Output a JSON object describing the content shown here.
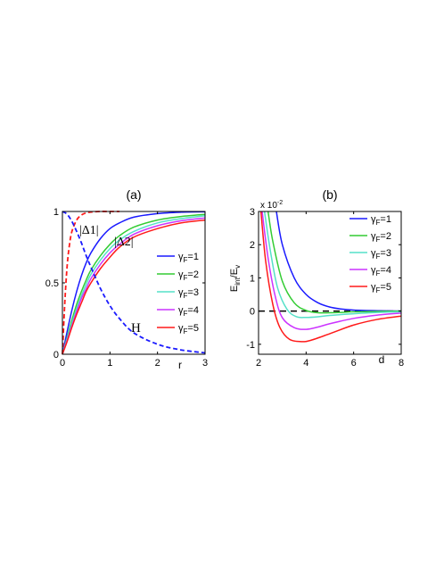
{
  "chart_data": [
    {
      "type": "line",
      "panel_label": "(a)",
      "xlabel": "r",
      "ylabel": "",
      "xlim": [
        0,
        3
      ],
      "ylim": [
        0,
        1
      ],
      "x_ticks": [
        "0",
        "1",
        "2",
        "3"
      ],
      "y_ticks": [
        "0",
        "0.5",
        "1"
      ],
      "legend_position": "right",
      "annotations": [
        "|Δ1|",
        "|Δ2|",
        "H"
      ],
      "series": [
        {
          "name": "γF=1",
          "color": "#1a1aff",
          "style": "solid",
          "x": [
            0,
            0.1,
            0.2,
            0.3,
            0.4,
            0.5,
            0.6,
            0.8,
            1.0,
            1.2,
            1.5,
            2.0,
            2.5,
            3.0
          ],
          "y": [
            0,
            0.16,
            0.31,
            0.44,
            0.55,
            0.64,
            0.71,
            0.81,
            0.88,
            0.92,
            0.96,
            0.985,
            0.995,
            0.998
          ]
        },
        {
          "name": "γF=2",
          "color": "#33cc33",
          "style": "solid",
          "x": [
            0,
            0.1,
            0.2,
            0.3,
            0.4,
            0.5,
            0.6,
            0.8,
            1.0,
            1.2,
            1.5,
            2.0,
            2.5,
            3.0
          ],
          "y": [
            0,
            0.12,
            0.24,
            0.35,
            0.44,
            0.52,
            0.59,
            0.69,
            0.77,
            0.83,
            0.89,
            0.94,
            0.965,
            0.98
          ]
        },
        {
          "name": "γF=3",
          "color": "#55e0c8",
          "style": "solid",
          "x": [
            0,
            0.1,
            0.2,
            0.3,
            0.4,
            0.5,
            0.6,
            0.8,
            1.0,
            1.2,
            1.5,
            2.0,
            2.5,
            3.0
          ],
          "y": [
            0,
            0.11,
            0.22,
            0.32,
            0.41,
            0.49,
            0.56,
            0.66,
            0.74,
            0.8,
            0.86,
            0.92,
            0.95,
            0.97
          ]
        },
        {
          "name": "γF=4",
          "color": "#cc33ff",
          "style": "solid",
          "x": [
            0,
            0.1,
            0.2,
            0.3,
            0.4,
            0.5,
            0.6,
            0.8,
            1.0,
            1.2,
            1.5,
            2.0,
            2.5,
            3.0
          ],
          "y": [
            0,
            0.1,
            0.2,
            0.3,
            0.39,
            0.46,
            0.53,
            0.63,
            0.71,
            0.77,
            0.84,
            0.9,
            0.935,
            0.955
          ]
        },
        {
          "name": "γF=5",
          "color": "#ff1a1a",
          "style": "solid",
          "x": [
            0,
            0.1,
            0.2,
            0.3,
            0.4,
            0.5,
            0.6,
            0.8,
            1.0,
            1.2,
            1.5,
            2.0,
            2.5,
            3.0
          ],
          "y": [
            0,
            0.09,
            0.19,
            0.28,
            0.36,
            0.44,
            0.5,
            0.6,
            0.68,
            0.75,
            0.82,
            0.88,
            0.92,
            0.94
          ]
        },
        {
          "name": "",
          "color": "#ff1a1a",
          "style": "dashed",
          "x": [
            0,
            0.05,
            0.1,
            0.15,
            0.2,
            0.3,
            0.4,
            0.5,
            0.6,
            0.8,
            1.0,
            1.2
          ],
          "y": [
            0,
            0.36,
            0.62,
            0.77,
            0.86,
            0.94,
            0.975,
            0.99,
            0.996,
            1.0,
            1.0,
            1.0
          ]
        },
        {
          "name": "",
          "color": "#1a1aff",
          "style": "dashed",
          "x": [
            0,
            0.1,
            0.2,
            0.3,
            0.4,
            0.5,
            0.6,
            0.8,
            1.0,
            1.2,
            1.5,
            2.0,
            2.5,
            3.0
          ],
          "y": [
            1.0,
            0.98,
            0.93,
            0.86,
            0.78,
            0.69,
            0.61,
            0.46,
            0.34,
            0.25,
            0.15,
            0.07,
            0.03,
            0.01
          ]
        }
      ]
    },
    {
      "type": "line",
      "panel_label": "(b)",
      "xlabel": "d",
      "ylabel": "E_int/E_v",
      "ylabel_main": "E",
      "ylabel_sub1": "int",
      "ylabel_mid": "/E",
      "ylabel_sub2": "v",
      "y_multiplier": "x 10",
      "y_multiplier_exp": "-2",
      "xlim": [
        2,
        8
      ],
      "ylim": [
        -1.3,
        3
      ],
      "x_ticks": [
        "2",
        "4",
        "6",
        "8"
      ],
      "y_ticks": [
        "-1",
        "0",
        "1",
        "2",
        "3"
      ],
      "legend_position": "top-right",
      "reference_line": {
        "y": 0,
        "color": "#000000",
        "style": "dashed"
      },
      "series": [
        {
          "name": "γF=1",
          "color": "#1a1aff",
          "x": [
            2.75,
            3.0,
            3.5,
            4.0,
            4.5,
            5.0,
            5.5,
            6.0,
            7.0,
            8.0
          ],
          "y": [
            3.0,
            2.0,
            1.0,
            0.5,
            0.25,
            0.12,
            0.06,
            0.03,
            0.01,
            0.0
          ]
        },
        {
          "name": "γF=2",
          "color": "#33cc33",
          "x": [
            2.4,
            2.6,
            3.0,
            3.5,
            4.0,
            4.5,
            5.0,
            5.5,
            6.0,
            7.0,
            8.0
          ],
          "y": [
            3.0,
            2.1,
            0.9,
            0.25,
            0.02,
            -0.05,
            -0.05,
            -0.04,
            -0.02,
            -0.01,
            0.0
          ]
        },
        {
          "name": "γF=3",
          "color": "#55e0c8",
          "x": [
            2.25,
            2.5,
            2.8,
            3.2,
            3.6,
            4.0,
            4.5,
            5.0,
            6.0,
            7.0,
            8.0
          ],
          "y": [
            3.0,
            1.8,
            0.7,
            0.05,
            -0.17,
            -0.19,
            -0.17,
            -0.13,
            -0.08,
            -0.04,
            -0.02
          ]
        },
        {
          "name": "γF=4",
          "color": "#cc33ff",
          "x": [
            2.15,
            2.4,
            2.7,
            3.0,
            3.5,
            4.0,
            4.5,
            5.0,
            6.0,
            7.0,
            8.0
          ],
          "y": [
            3.0,
            1.6,
            0.45,
            -0.2,
            -0.5,
            -0.55,
            -0.48,
            -0.38,
            -0.22,
            -0.12,
            -0.06
          ]
        },
        {
          "name": "γF=5",
          "color": "#ff1a1a",
          "x": [
            2.1,
            2.3,
            2.6,
            2.9,
            3.3,
            3.8,
            4.2,
            5.0,
            6.0,
            7.0,
            8.0
          ],
          "y": [
            3.0,
            1.5,
            0.2,
            -0.5,
            -0.85,
            -0.92,
            -0.88,
            -0.68,
            -0.42,
            -0.25,
            -0.15
          ]
        }
      ]
    }
  ]
}
